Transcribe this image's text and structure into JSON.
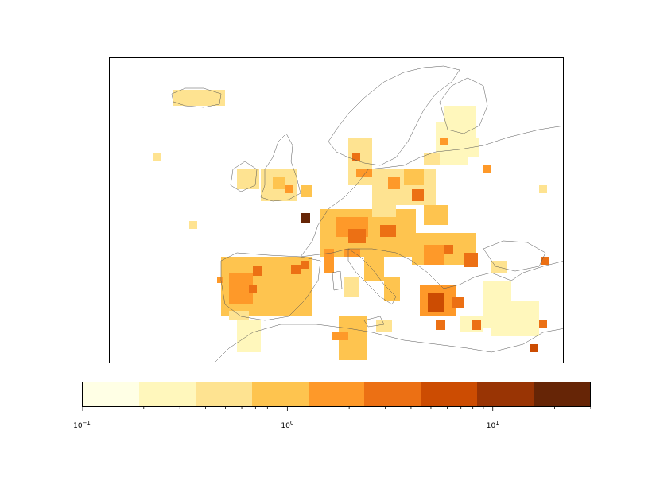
{
  "map": {
    "region": "Europe",
    "basemap_outline": "coastlines",
    "colormap": "YlOrBr",
    "land_color": "#ffffff",
    "colorbar": {
      "scale": "log",
      "range": [
        0.1,
        30
      ],
      "levels": [
        0.1,
        0.19,
        0.35,
        0.66,
        1.25,
        2.35,
        4.4,
        8.3,
        15.7,
        30
      ],
      "colors": [
        "#ffffe5",
        "#fff7bc",
        "#fee391",
        "#fec44f",
        "#fe9929",
        "#ec7014",
        "#cc4c02",
        "#993404",
        "#662506"
      ],
      "tick_labels": [
        {
          "base": "10",
          "exp": "−1",
          "value": 0.1
        },
        {
          "base": "10",
          "exp": "0",
          "value": 1
        },
        {
          "base": "10",
          "exp": "1",
          "value": 10
        }
      ]
    }
  }
}
